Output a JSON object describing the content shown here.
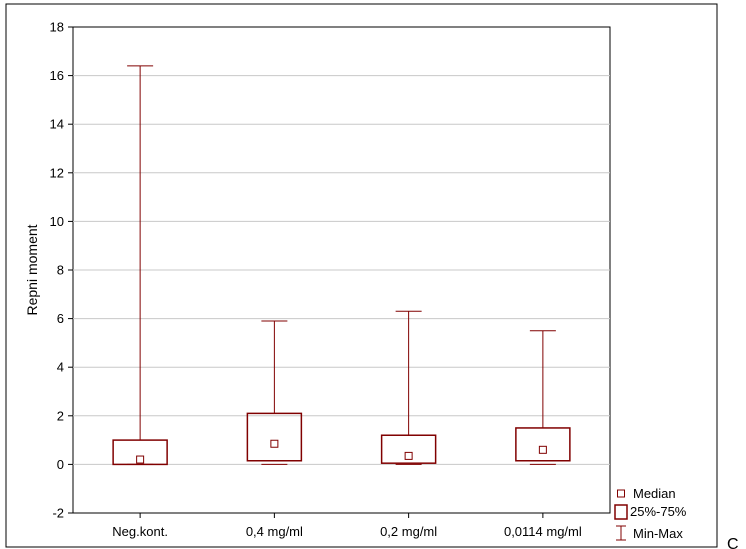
{
  "chart_data": {
    "type": "box",
    "ylabel": "Repni moment",
    "ylim": [
      -2,
      18
    ],
    "yticks": [
      -2,
      0,
      2,
      4,
      6,
      8,
      10,
      12,
      14,
      16,
      18
    ],
    "grid": true,
    "categories": [
      "Neg.kont.",
      "0,4 mg/ml",
      "0,2 mg/ml",
      "0,0114 mg/ml"
    ],
    "boxes": [
      {
        "min": 0.0,
        "q1": 0.0,
        "median": 0.2,
        "q3": 1.0,
        "max": 16.4
      },
      {
        "min": 0.0,
        "q1": 0.15,
        "median": 0.85,
        "q3": 2.1,
        "max": 5.9
      },
      {
        "min": 0.0,
        "q1": 0.05,
        "median": 0.35,
        "q3": 1.2,
        "max": 6.3
      },
      {
        "min": 0.0,
        "q1": 0.15,
        "median": 0.6,
        "q3": 1.5,
        "max": 5.5
      }
    ],
    "legend": {
      "position": "bottom-right",
      "items": [
        "Median",
        "25%-75%",
        "Min-Max"
      ]
    },
    "color": "#800000"
  },
  "stray_text": "C"
}
